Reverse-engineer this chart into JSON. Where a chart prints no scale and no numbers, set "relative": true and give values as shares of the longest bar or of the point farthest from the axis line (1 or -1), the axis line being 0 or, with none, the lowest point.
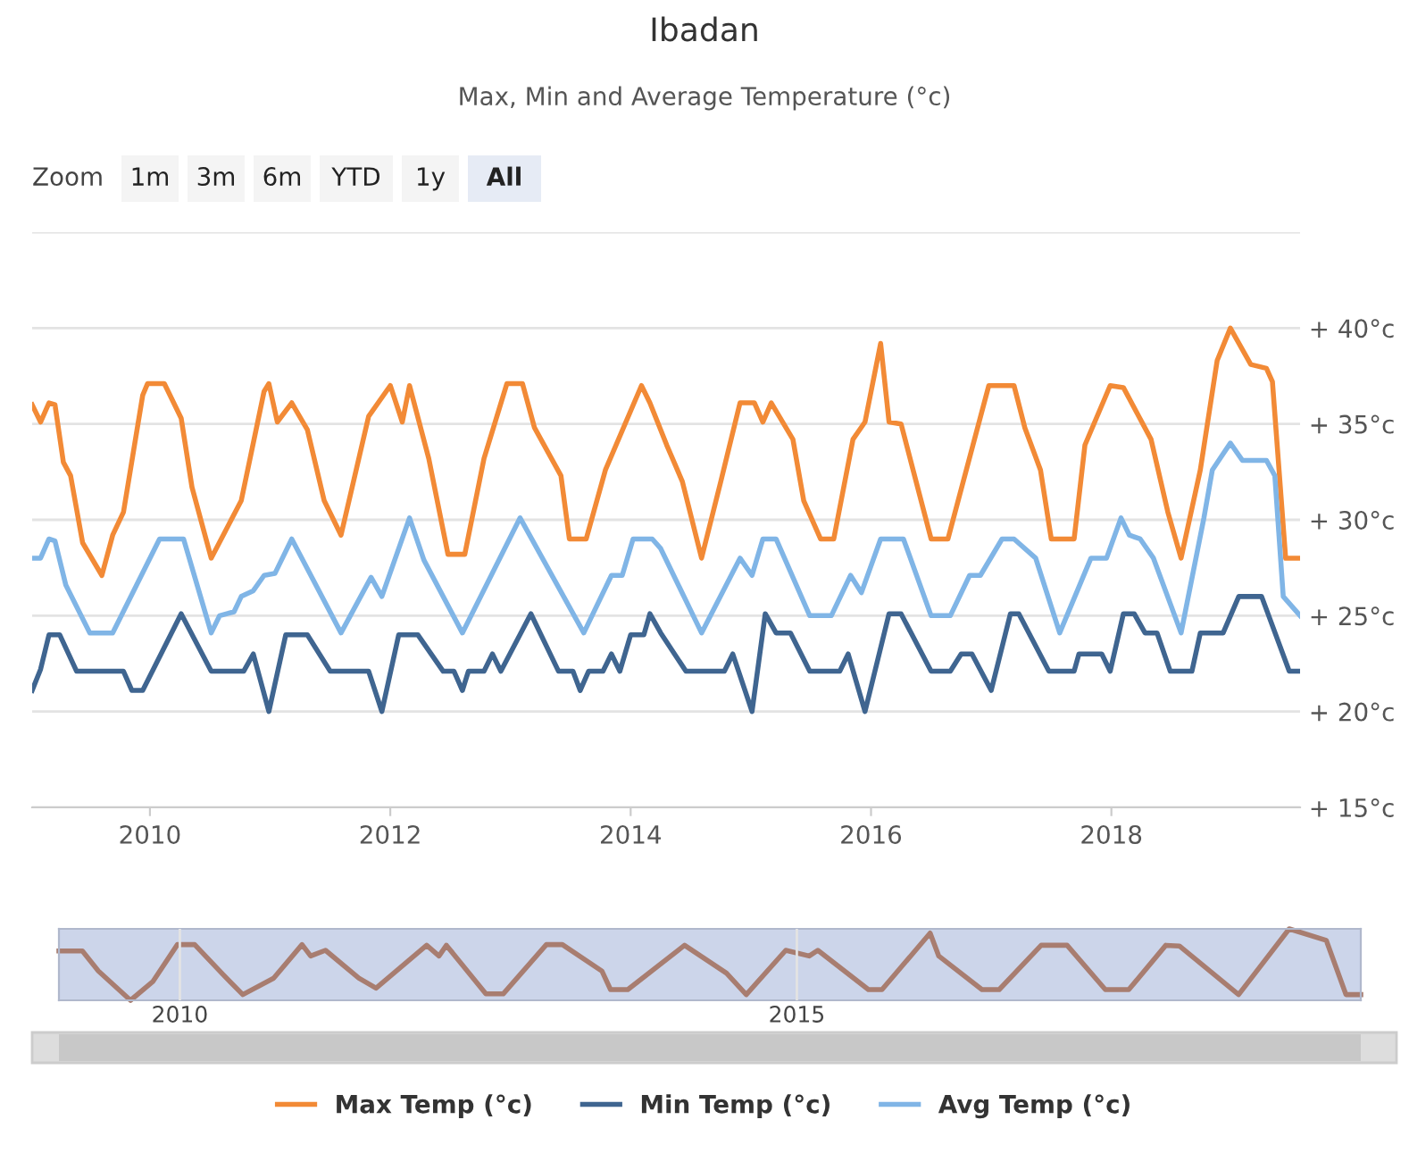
{
  "chart_data": [
    {
      "type": "line",
      "title": "Ibadan",
      "subtitle": "Max, Min and Average Temperature (°c)",
      "annotations": [
        "Zoom",
        "1m",
        "3m",
        "6m",
        "YTD",
        "1y",
        "All"
      ],
      "xlim": [
        2009.02,
        2019.57
      ],
      "xticks": [
        2010,
        2012,
        2014,
        2016,
        2018
      ],
      "ylim": [
        15,
        45
      ],
      "yticks": [
        {
          "value": 15,
          "label": "+ 15°c"
        },
        {
          "value": 20,
          "label": "+ 20°c"
        },
        {
          "value": 25,
          "label": "+ 25°c"
        },
        {
          "value": 30,
          "label": "+ 30°c"
        },
        {
          "value": 35,
          "label": "+ 35°c"
        },
        {
          "value": 40,
          "label": "+ 40°c"
        },
        {
          "value": 45,
          "label": null
        }
      ],
      "grid": "y",
      "legend": "bottom",
      "series": [
        {
          "name": "Max Temp (°c)",
          "color": "#f28a36",
          "x": [
            2009.02,
            2009.09,
            2009.16,
            2009.21,
            2009.28,
            2009.34,
            2009.44,
            2009.6,
            2009.69,
            2009.78,
            2009.94,
            2009.98,
            2010.12,
            2010.26,
            2010.35,
            2010.51,
            2010.76,
            2010.95,
            2010.99,
            2011.06,
            2011.18,
            2011.31,
            2011.45,
            2011.59,
            2011.82,
            2012.0,
            2012.1,
            2012.16,
            2012.32,
            2012.48,
            2012.62,
            2012.78,
            2012.97,
            2013.1,
            2013.2,
            2013.42,
            2013.49,
            2013.63,
            2013.79,
            2014.09,
            2014.16,
            2014.3,
            2014.43,
            2014.59,
            2014.75,
            2014.91,
            2015.03,
            2015.1,
            2015.17,
            2015.35,
            2015.44,
            2015.58,
            2015.69,
            2015.85,
            2015.95,
            2016.08,
            2016.15,
            2016.25,
            2016.5,
            2016.64,
            2016.98,
            2017.19,
            2017.28,
            2017.41,
            2017.5,
            2017.69,
            2017.78,
            2017.99,
            2018.1,
            2018.33,
            2018.47,
            2018.58,
            2018.74,
            2018.88,
            2018.99,
            2019.16,
            2019.29,
            2019.34,
            2019.45,
            2019.57
          ],
          "values": [
            36,
            35.1,
            36.1,
            36,
            33,
            32.3,
            28.8,
            27.1,
            29.2,
            30.4,
            36.5,
            37.1,
            37.1,
            35.3,
            31.7,
            28,
            31,
            36.7,
            37.1,
            35.1,
            36.1,
            34.7,
            31,
            29.2,
            35.4,
            37,
            35.1,
            37,
            33.2,
            28.2,
            28.2,
            33.2,
            37.1,
            37.1,
            34.8,
            32.3,
            29,
            29,
            32.6,
            37,
            36.1,
            33.9,
            32,
            28,
            32,
            36.1,
            36.1,
            35.1,
            36.1,
            34.2,
            31,
            29,
            29,
            34.2,
            35.1,
            39.2,
            35.1,
            35,
            29,
            29,
            37,
            37,
            34.8,
            32.6,
            29,
            29,
            33.9,
            37,
            36.9,
            34.2,
            30.4,
            28,
            32.6,
            38.3,
            40,
            38.1,
            37.9,
            37.2,
            28,
            28
          ]
        },
        {
          "name": "Min Temp (°c)",
          "color": "#3f6590",
          "x": [
            2009.02,
            2009.09,
            2009.16,
            2009.25,
            2009.39,
            2009.78,
            2009.85,
            2009.94,
            2010.26,
            2010.51,
            2010.78,
            2010.86,
            2010.99,
            2011.13,
            2011.31,
            2011.5,
            2011.82,
            2011.93,
            2012.07,
            2012.23,
            2012.44,
            2012.53,
            2012.6,
            2012.65,
            2012.78,
            2012.85,
            2012.92,
            2013.17,
            2013.4,
            2013.52,
            2013.58,
            2013.65,
            2013.77,
            2013.84,
            2013.91,
            2014.0,
            2014.11,
            2014.16,
            2014.25,
            2014.46,
            2014.78,
            2014.85,
            2015.01,
            2015.12,
            2015.21,
            2015.33,
            2015.49,
            2015.74,
            2015.81,
            2015.95,
            2016.15,
            2016.25,
            2016.5,
            2016.66,
            2016.75,
            2016.84,
            2017.0,
            2017.16,
            2017.23,
            2017.48,
            2017.69,
            2017.73,
            2017.92,
            2017.99,
            2018.1,
            2018.19,
            2018.28,
            2018.38,
            2018.49,
            2018.67,
            2018.74,
            2018.93,
            2019.06,
            2019.25,
            2019.48,
            2019.57
          ],
          "values": [
            21.1,
            22.2,
            24,
            24,
            22.1,
            22.1,
            21.1,
            21.1,
            25.1,
            22.1,
            22.1,
            23,
            20,
            24,
            24,
            22.1,
            22.1,
            20,
            24,
            24,
            22.1,
            22.1,
            21.1,
            22.1,
            22.1,
            23,
            22.1,
            25.1,
            22.1,
            22.1,
            21.1,
            22.1,
            22.1,
            23,
            22.1,
            24,
            24,
            25.1,
            24.1,
            22.1,
            22.1,
            23,
            20,
            25.1,
            24.1,
            24.1,
            22.1,
            22.1,
            23,
            20,
            25.1,
            25.1,
            22.1,
            22.1,
            23,
            23,
            21.1,
            25.1,
            25.1,
            22.1,
            22.1,
            23,
            23,
            22.1,
            25.1,
            25.1,
            24.1,
            24.1,
            22.1,
            22.1,
            24.1,
            24.1,
            26,
            26,
            22.1,
            22.1
          ]
        },
        {
          "name": "Avg Temp (°c)",
          "color": "#80b5e6",
          "x": [
            2009.02,
            2009.09,
            2009.16,
            2009.21,
            2009.3,
            2009.5,
            2009.69,
            2010.08,
            2010.28,
            2010.51,
            2010.58,
            2010.7,
            2010.76,
            2010.86,
            2010.95,
            2011.04,
            2011.18,
            2011.59,
            2011.84,
            2011.93,
            2012.16,
            2012.28,
            2012.6,
            2013.08,
            2013.61,
            2013.84,
            2013.93,
            2014.02,
            2014.18,
            2014.25,
            2014.59,
            2014.91,
            2015.01,
            2015.1,
            2015.21,
            2015.49,
            2015.67,
            2015.83,
            2015.92,
            2016.08,
            2016.27,
            2016.5,
            2016.66,
            2016.82,
            2016.91,
            2017.09,
            2017.19,
            2017.37,
            2017.57,
            2017.83,
            2017.96,
            2018.08,
            2018.15,
            2018.24,
            2018.35,
            2018.58,
            2018.77,
            2018.84,
            2018.99,
            2019.09,
            2019.29,
            2019.36,
            2019.43,
            2019.57
          ],
          "values": [
            28,
            28,
            29,
            28.9,
            26.6,
            24.1,
            24.1,
            29,
            29,
            24.1,
            25,
            25.2,
            26,
            26.3,
            27.1,
            27.2,
            29,
            24.1,
            27,
            26,
            30.1,
            27.9,
            24.1,
            30.1,
            24.1,
            27.1,
            27.1,
            29,
            29,
            28.5,
            24.1,
            28,
            27.1,
            29,
            29,
            25,
            25,
            27.1,
            26.2,
            29,
            29,
            25,
            25,
            27.1,
            27.1,
            29,
            29,
            28,
            24.1,
            28,
            28,
            30.1,
            29.2,
            29,
            28,
            24.1,
            30.1,
            32.6,
            34,
            33.1,
            33.1,
            32.3,
            26,
            25
          ]
        }
      ]
    },
    {
      "type": "line",
      "relative": true,
      "color": "#a87d70",
      "xlim": [
        2009.02,
        2019.57
      ],
      "xticks": [
        2010,
        2015
      ],
      "tick_labels": "x",
      "grid": "x",
      "x": [
        2009.02,
        2009.21,
        2009.34,
        2009.6,
        2009.78,
        2009.98,
        2010.12,
        2010.35,
        2010.51,
        2010.76,
        2010.99,
        2011.06,
        2011.18,
        2011.45,
        2011.59,
        2012.0,
        2012.1,
        2012.16,
        2012.48,
        2012.62,
        2012.97,
        2013.1,
        2013.42,
        2013.49,
        2013.63,
        2014.09,
        2014.43,
        2014.59,
        2014.91,
        2015.1,
        2015.17,
        2015.58,
        2015.69,
        2016.08,
        2016.15,
        2016.5,
        2016.64,
        2016.98,
        2017.19,
        2017.5,
        2017.69,
        2017.99,
        2018.1,
        2018.58,
        2018.99,
        2019.29,
        2019.45,
        2019.57
      ],
      "values": [
        0.69,
        0.69,
        0.41,
        0,
        0.26,
        0.78,
        0.78,
        0.36,
        0.08,
        0.31,
        0.78,
        0.62,
        0.7,
        0.31,
        0.17,
        0.77,
        0.62,
        0.77,
        0.09,
        0.09,
        0.78,
        0.78,
        0.41,
        0.15,
        0.15,
        0.77,
        0.38,
        0.08,
        0.7,
        0.62,
        0.7,
        0.15,
        0.15,
        0.94,
        0.62,
        0.15,
        0.15,
        0.77,
        0.77,
        0.15,
        0.15,
        0.77,
        0.76,
        0.08,
        1,
        0.84,
        0.08,
        0.08
      ]
    }
  ]
}
